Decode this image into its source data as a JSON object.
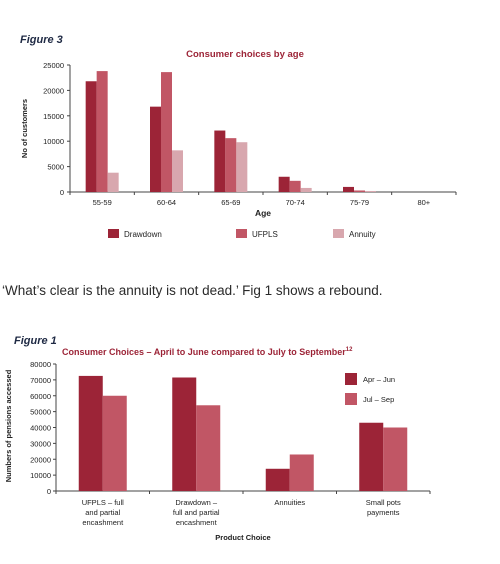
{
  "quote_text": "‘What’s clear is the annuity is not dead.’  Fig 1 shows a rebound.",
  "chart_data": [
    {
      "figure_label": "Figure 3",
      "type": "bar",
      "title": "Consumer choices by age",
      "xlabel": "Age",
      "ylabel": "No of customers",
      "ylim": [
        0,
        25000
      ],
      "yticks": [
        0,
        5000,
        10000,
        15000,
        20000,
        25000
      ],
      "ytick_labels": [
        "0",
        "5000",
        "10000",
        "15000",
        "20000",
        "25000"
      ],
      "categories": [
        "55-59",
        "60-64",
        "65-69",
        "70-74",
        "75-79",
        "80+"
      ],
      "legend_position": "bottom",
      "grid": false,
      "series": [
        {
          "name": "Drawdown",
          "color": "#9c2437",
          "values": [
            21800,
            16800,
            12100,
            3000,
            1000,
            0
          ]
        },
        {
          "name": "UFPLS",
          "color": "#c15665",
          "values": [
            23800,
            23600,
            10600,
            2200,
            300,
            0
          ]
        },
        {
          "name": "Annuity",
          "color": "#d8a7ae",
          "values": [
            3800,
            8200,
            9800,
            800,
            200,
            0
          ]
        }
      ]
    },
    {
      "figure_label": "Figure 1",
      "type": "bar",
      "title": "Consumer Choices – April to June compared to July to September",
      "title_superscript": "12",
      "xlabel": "Product Choice",
      "ylabel": "Numbers of pensions accessed",
      "ylim": [
        0,
        80000
      ],
      "yticks": [
        0,
        10000,
        20000,
        30000,
        40000,
        50000,
        60000,
        70000,
        80000
      ],
      "ytick_labels": [
        "0",
        "10000",
        "20000",
        "30000",
        "40000",
        "50000",
        "60000",
        "70000",
        "80000"
      ],
      "categories": [
        [
          "UFPLS – full",
          "and partial",
          "encashment"
        ],
        [
          "Drawdown –",
          "full and partial",
          "encashment"
        ],
        [
          "Annuities"
        ],
        [
          "Small pots",
          "payments"
        ]
      ],
      "legend_position": "right",
      "grid": false,
      "series": [
        {
          "name": "Apr – Jun",
          "color": "#9c2437",
          "values": [
            72500,
            71500,
            14000,
            43000
          ]
        },
        {
          "name": "Jul – Sep",
          "color": "#c15665",
          "values": [
            60000,
            54000,
            23000,
            40000
          ]
        }
      ]
    }
  ]
}
